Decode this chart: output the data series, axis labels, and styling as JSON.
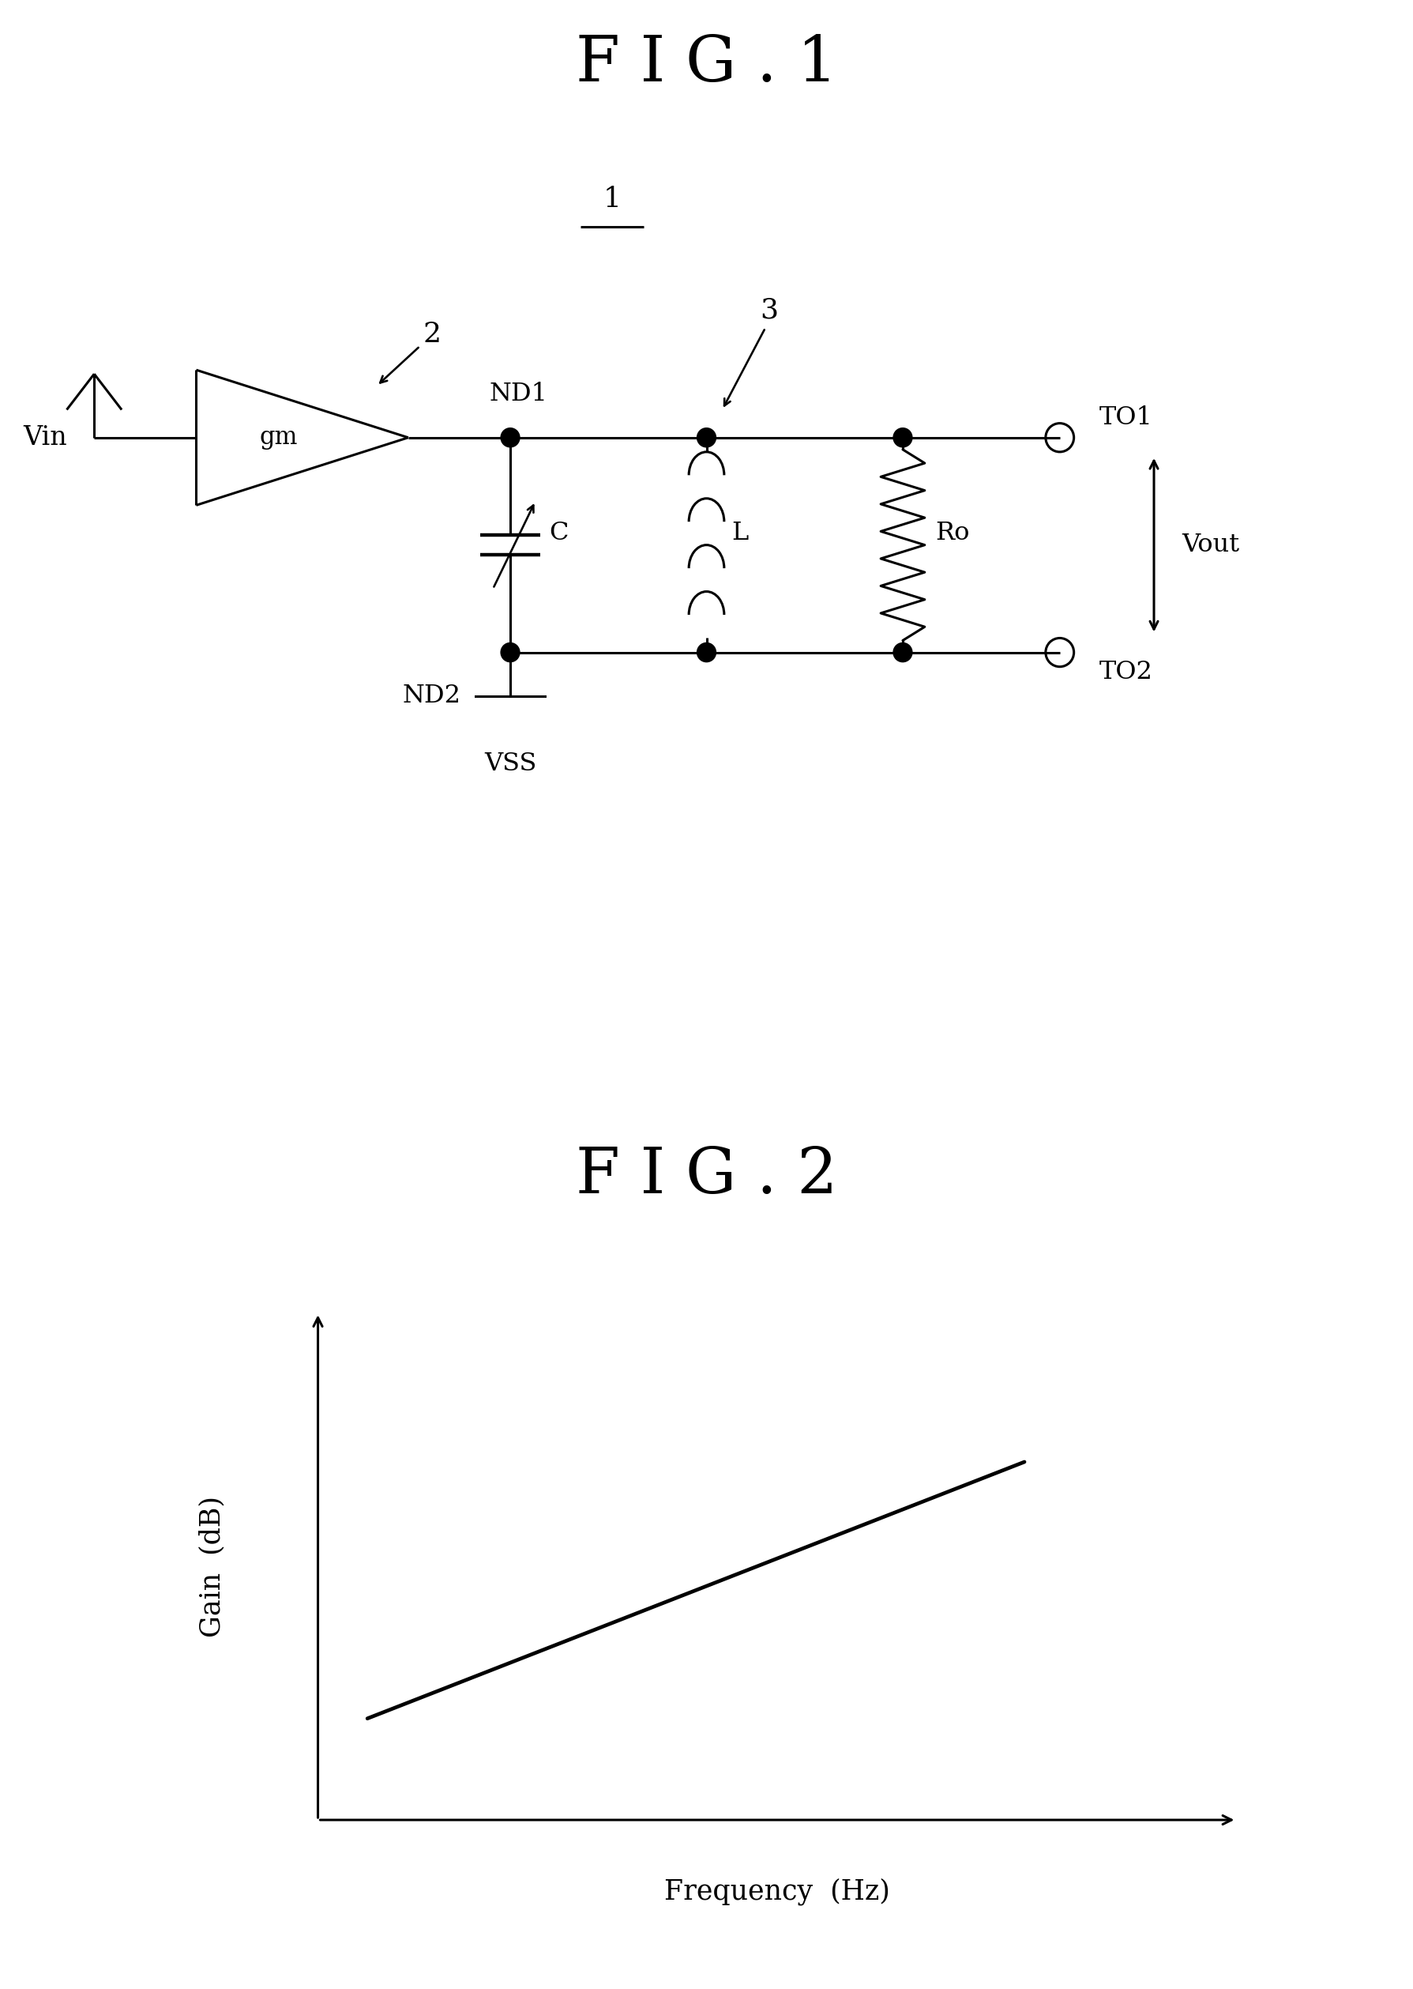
{
  "fig1_title": "F I G . 1",
  "fig2_title": "F I G . 2",
  "bg_color": "#ffffff",
  "line_color": "#000000",
  "line_width": 2.2,
  "fig1_label_1": "1",
  "fig1_label_2": "2",
  "fig1_label_3": "3",
  "label_ND1": "ND1",
  "label_ND2": "ND2",
  "label_TO1": "TO1",
  "label_TO2": "TO2",
  "label_VSS": "VSS",
  "label_Vin": "Vin",
  "label_Vout": "Vout",
  "label_gm": "gm",
  "label_C": "C",
  "label_L": "L",
  "label_Ro": "Ro",
  "xlabel_fig2": "Frequency  (Hz)",
  "ylabel_fig2": "Gain  (dB)"
}
